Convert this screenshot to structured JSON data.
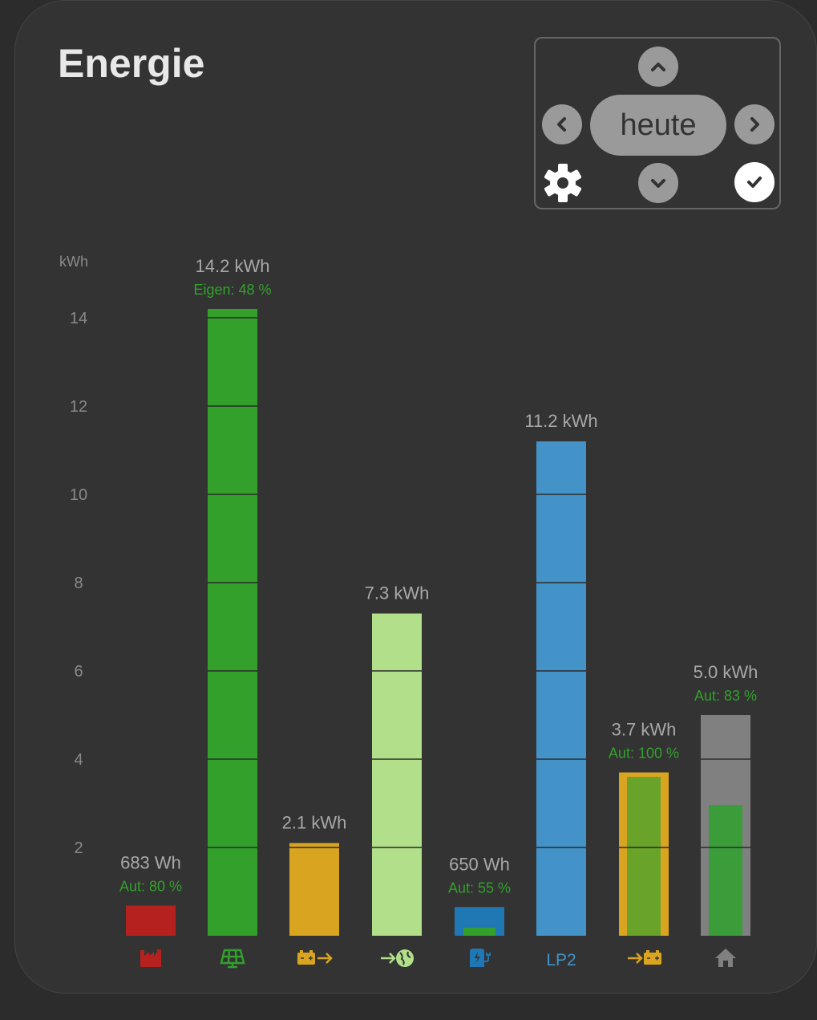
{
  "header": {
    "title": "Energie"
  },
  "controls": {
    "period_label": "heute"
  },
  "colors": {
    "bg": "#333333",
    "label": "#a8a8a8",
    "green_text": "#33a02c"
  },
  "chart_data": {
    "type": "bar",
    "ylabel": "kWh",
    "ylim": [
      0,
      14.5
    ],
    "yticks": [
      2,
      4,
      6,
      8,
      10,
      12,
      14
    ],
    "categories": [
      "factory",
      "pv",
      "battery-discharge",
      "grid-feed-in",
      "charger",
      "LP2",
      "battery-charge",
      "house"
    ],
    "values": [
      0.683,
      14.2,
      2.1,
      7.3,
      0.65,
      11.2,
      3.7,
      5.0
    ],
    "inner_values": [
      null,
      null,
      null,
      null,
      0.18,
      null,
      3.6,
      2.96
    ],
    "value_labels": [
      "683 Wh",
      "14.2 kWh",
      "2.1 kWh",
      "7.3 kWh",
      "650 Wh",
      "11.2 kWh",
      "3.7 kWh",
      "5.0 kWh"
    ],
    "sub_labels": [
      "Aut: 80 %",
      "Eigen: 48 %",
      "",
      "",
      "Aut: 55 %",
      "",
      "Aut: 100 %",
      "Aut: 83 %"
    ],
    "bar_colors": [
      "#b5211f",
      "#33a02c",
      "#d9a521",
      "#b2df8a",
      "#1f78b4",
      "#4393c9",
      "#d9a521",
      "#808080"
    ],
    "inner_colors": [
      null,
      null,
      null,
      null,
      "#33a02c",
      null,
      "#6aa329",
      "#3b9d3a"
    ],
    "x_labels": [
      "",
      "",
      "",
      "",
      "",
      "LP2",
      "",
      ""
    ],
    "icons": [
      "factory-icon",
      "solar-panel-icon",
      "battery-discharge-icon",
      "grid-export-icon",
      "ev-charger-icon",
      "",
      "battery-charge-icon",
      "home-icon"
    ]
  }
}
